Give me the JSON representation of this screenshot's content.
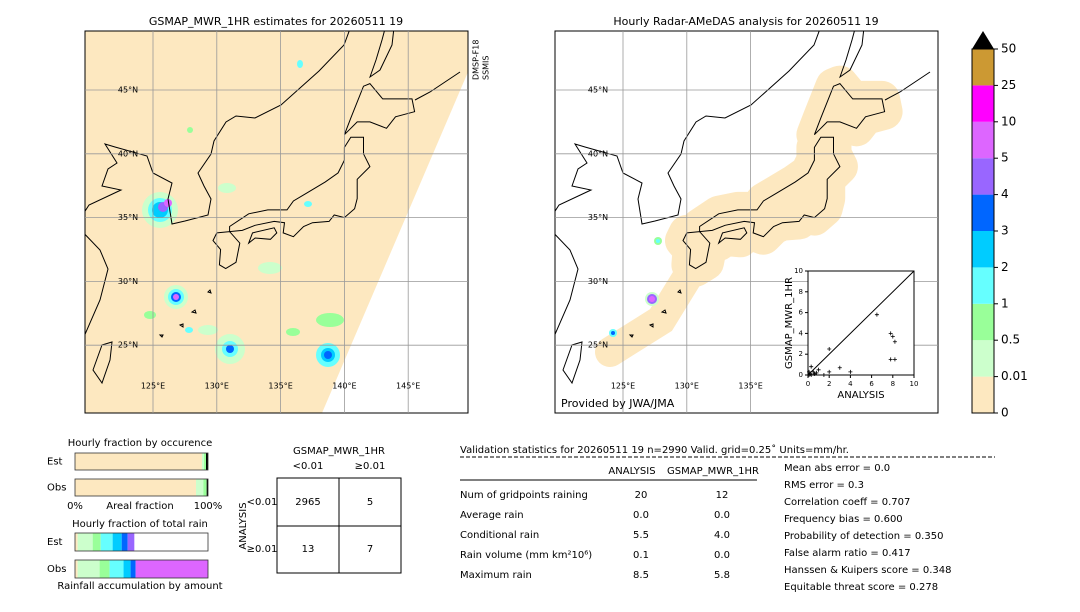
{
  "left_map": {
    "title": "GSMAP_MWR_1HR estimates for 20260511 19",
    "satellite": [
      "DMSP-F18",
      "SSMIS"
    ],
    "lat_labels": [
      "45°N",
      "40°N",
      "35°N",
      "30°N",
      "25°N"
    ],
    "lon_labels": [
      "125°E",
      "130°E",
      "135°E",
      "140°E",
      "145°E"
    ]
  },
  "right_map": {
    "title": "Hourly Radar-AMeDAS analysis for 20260511 19",
    "credit": "Provided by JWA/JMA",
    "lat_labels": [
      "45°N",
      "40°N",
      "35°N",
      "30°N",
      "25°N"
    ],
    "lon_labels": [
      "125°E",
      "130°E",
      "135°E"
    ]
  },
  "colorbar": {
    "ticks": [
      0,
      0.01,
      0.5,
      1,
      2,
      3,
      4,
      5,
      10,
      25,
      50
    ],
    "colors": [
      "#fde8c0",
      "#ccffcc",
      "#99ff99",
      "#66ffff",
      "#00ccff",
      "#0066ff",
      "#9966ff",
      "#dd66ff",
      "#ff00ff",
      "#cc9933"
    ],
    "extend_color": "#000000"
  },
  "chart_data": [
    {
      "type": "scatter",
      "xlabel": "ANALYSIS",
      "ylabel": "GSMAP_MWR_1HR",
      "xlim": [
        0,
        10
      ],
      "ylim": [
        0,
        10
      ],
      "xticks": [
        0,
        2,
        4,
        6,
        8,
        10
      ],
      "yticks": [
        0,
        2,
        4,
        6,
        8,
        10
      ],
      "color": "#000000",
      "x": [
        0.1,
        0.2,
        0.3,
        0.5,
        0.8,
        1.0,
        1.5,
        2.0,
        2.0,
        3.0,
        4.0,
        6.5,
        7.8,
        8.0,
        8.2,
        7.8,
        8.2,
        0.1,
        0.3,
        0.6
      ],
      "y": [
        0,
        0.1,
        0.8,
        0.3,
        0.2,
        0.5,
        0,
        2.5,
        0.3,
        0.7,
        0.3,
        5.8,
        4.0,
        3.7,
        3.2,
        1.5,
        1.5,
        0.3,
        0,
        0.1
      ]
    },
    {
      "type": "bar",
      "orientation": "horizontal",
      "stacked": true,
      "title": "Hourly fraction by occurence",
      "xlabel": "Areal fraction",
      "categories": [
        "Est",
        "Obs"
      ],
      "xlim": [
        0,
        1
      ],
      "xticks": [
        {
          "value": 0,
          "label": "0%"
        },
        {
          "value": 1,
          "label": "100%"
        }
      ],
      "series": [
        {
          "color": "#fde8c0",
          "values": [
            0.955,
            0.91
          ]
        },
        {
          "color": "#ccffcc",
          "values": [
            0.015,
            0.055
          ]
        },
        {
          "color": "#99ff99",
          "values": [
            0.015,
            0.025
          ]
        },
        {
          "color": "#000000",
          "values": [
            0.015,
            0.01
          ]
        }
      ]
    },
    {
      "type": "bar",
      "orientation": "horizontal",
      "stacked": true,
      "title": "Hourly fraction of total rain",
      "xlabel": "Rainfall accumulation by amount",
      "categories": [
        "Est",
        "Obs"
      ],
      "xlim": [
        0,
        1
      ],
      "series": [
        {
          "color": "#fde8c0",
          "values": [
            0.02,
            0.02
          ]
        },
        {
          "color": "#ccffcc",
          "values": [
            0.113,
            0.165
          ]
        },
        {
          "color": "#99ff99",
          "values": [
            0.06,
            0.075
          ]
        },
        {
          "color": "#66ffff",
          "values": [
            0.09,
            0.105
          ]
        },
        {
          "color": "#00ccff",
          "values": [
            0.068,
            0.053
          ]
        },
        {
          "color": "#0066ff",
          "values": [
            0.045,
            0.038
          ]
        },
        {
          "color": "#9966ff",
          "values": [
            0.05,
            0
          ]
        },
        {
          "color": "#dd66ff",
          "values": [
            0,
            0.544
          ]
        }
      ]
    }
  ],
  "contingency": {
    "title": "GSMAP_MWR_1HR",
    "col_labels": [
      "<0.01",
      "≥0.01"
    ],
    "row_title": "ANALYSIS",
    "row_labels": [
      "<0.01",
      "≥0.01"
    ],
    "cells": [
      [
        2965,
        5
      ],
      [
        13,
        7
      ]
    ]
  },
  "validation": {
    "title": "Validation statistics for 20260511 19  n=2990 Valid. grid=0.25˚ Units=mm/hr.",
    "columns": [
      "ANALYSIS",
      "GSMAP_MWR_1HR"
    ],
    "rows": [
      {
        "label": "Num of gridpoints raining",
        "values": [
          20,
          12
        ]
      },
      {
        "label": "Average rain",
        "values": [
          "0.0",
          "0.0"
        ]
      },
      {
        "label": "Conditional rain",
        "values": [
          5.5,
          "4.0"
        ]
      },
      {
        "label": "Rain volume (mm km²10⁶)",
        "values": [
          0.1,
          "0.0"
        ]
      },
      {
        "label": "Maximum rain",
        "values": [
          8.5,
          5.8
        ]
      }
    ],
    "scores": [
      "Mean abs error =    0.0",
      "RMS error =    0.3",
      "Correlation coeff =  0.707",
      "Frequency bias =  0.600",
      "Probability of detection =  0.350",
      "False alarm ratio =  0.417",
      "Hanssen & Kuipers score =  0.348",
      "Equitable threat score =  0.278"
    ]
  }
}
